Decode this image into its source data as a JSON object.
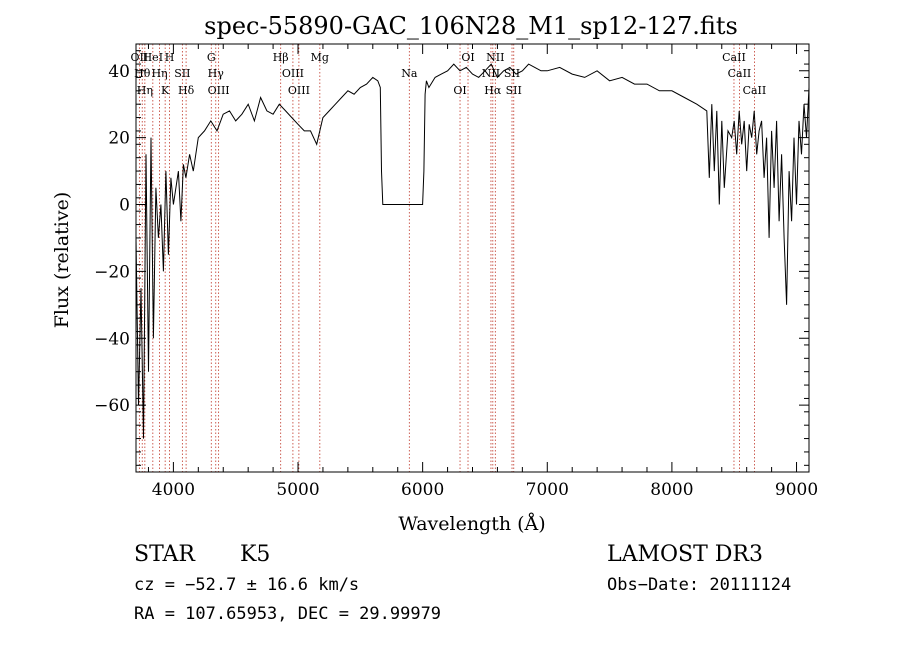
{
  "chart_data": {
    "type": "line",
    "title": "spec-55890-GAC_106N28_M1_sp12-127.fits",
    "xlabel": "Wavelength (Å)",
    "ylabel": "Flux (relative)",
    "xlim": [
      3700,
      9100
    ],
    "ylim": [
      -80,
      48
    ],
    "xticks": [
      4000,
      5000,
      6000,
      7000,
      8000,
      9000
    ],
    "xtick_labels": [
      "4000",
      "5000",
      "6000",
      "7000",
      "8000",
      "9000"
    ],
    "yticks": [
      -60,
      -40,
      -20,
      0,
      20,
      40
    ],
    "ytick_labels": [
      "−60",
      "−40",
      "−20",
      "0",
      "20",
      "40"
    ],
    "series": [
      {
        "color": "#000000",
        "x": [
          3700,
          3720,
          3740,
          3760,
          3780,
          3800,
          3820,
          3840,
          3860,
          3880,
          3900,
          3920,
          3940,
          3960,
          3980,
          4000,
          4020,
          4040,
          4060,
          4080,
          4100,
          4130,
          4160,
          4200,
          4250,
          4300,
          4350,
          4400,
          4450,
          4500,
          4550,
          4600,
          4650,
          4700,
          4750,
          4800,
          4850,
          4900,
          4950,
          5000,
          5050,
          5100,
          5150,
          5200,
          5250,
          5300,
          5350,
          5400,
          5450,
          5500,
          5550,
          5600,
          5640,
          5660,
          5670,
          5680,
          5700,
          5800,
          5900,
          6000,
          6010,
          6020,
          6030,
          6050,
          6100,
          6150,
          6200,
          6250,
          6300,
          6350,
          6400,
          6450,
          6500,
          6550,
          6600,
          6650,
          6700,
          6750,
          6800,
          6850,
          6900,
          6950,
          7000,
          7100,
          7200,
          7300,
          7400,
          7500,
          7600,
          7700,
          7800,
          7900,
          8000,
          8100,
          8200,
          8280,
          8300,
          8320,
          8340,
          8360,
          8380,
          8400,
          8420,
          8450,
          8480,
          8500,
          8520,
          8540,
          8560,
          8580,
          8600,
          8620,
          8640,
          8660,
          8680,
          8700,
          8720,
          8740,
          8760,
          8780,
          8800,
          8820,
          8840,
          8860,
          8880,
          8900,
          8920,
          8940,
          8960,
          8980,
          9000,
          9020,
          9040,
          9060,
          9080,
          9100
        ],
        "y": [
          -10,
          -60,
          -25,
          -70,
          15,
          -50,
          20,
          -40,
          5,
          -10,
          0,
          -20,
          10,
          -15,
          8,
          0,
          5,
          10,
          -5,
          12,
          8,
          15,
          10,
          20,
          22,
          25,
          22,
          27,
          28,
          25,
          27,
          30,
          25,
          32,
          28,
          27,
          30,
          28,
          26,
          24,
          22,
          22,
          18,
          26,
          28,
          30,
          32,
          34,
          33,
          35,
          36,
          38,
          37,
          35,
          10,
          0,
          0,
          0,
          0,
          0,
          10,
          33,
          37,
          35,
          38,
          39,
          40,
          42,
          40,
          41,
          39,
          38,
          40,
          42,
          38,
          40,
          41,
          39,
          40,
          42,
          41,
          40,
          40,
          41,
          39,
          38,
          40,
          37,
          38,
          36,
          36,
          34,
          34,
          32,
          30,
          28,
          8,
          30,
          10,
          28,
          0,
          25,
          5,
          22,
          20,
          25,
          15,
          28,
          18,
          25,
          10,
          24,
          20,
          28,
          15,
          22,
          25,
          8,
          20,
          -10,
          22,
          5,
          25,
          -5,
          15,
          -10,
          -30,
          10,
          -5,
          20,
          0,
          25,
          15,
          30,
          20,
          35
        ]
      }
    ],
    "line_markers": [
      {
        "x": 3727,
        "label": "OII"
      },
      {
        "x": 3750,
        "label": "Hθ"
      },
      {
        "x": 3771,
        "label": "Hη"
      },
      {
        "x": 3835,
        "label": "HeI"
      },
      {
        "x": 3889,
        "label": "Hη"
      },
      {
        "x": 3934,
        "label": "K"
      },
      {
        "x": 3969,
        "label": "H"
      },
      {
        "x": 4072,
        "label": "SII"
      },
      {
        "x": 4102,
        "label": "Hδ"
      },
      {
        "x": 4304,
        "label": "G"
      },
      {
        "x": 4340,
        "label": "Hγ"
      },
      {
        "x": 4363,
        "label": "OIII"
      },
      {
        "x": 4861,
        "label": "Hβ"
      },
      {
        "x": 4959,
        "label": "OIII"
      },
      {
        "x": 5007,
        "label": "OIII"
      },
      {
        "x": 5175,
        "label": "Mg"
      },
      {
        "x": 5893,
        "label": "Na"
      },
      {
        "x": 6300,
        "label": "OI"
      },
      {
        "x": 6364,
        "label": "OI"
      },
      {
        "x": 6548,
        "label": "NII"
      },
      {
        "x": 6563,
        "label": "Hα"
      },
      {
        "x": 6583,
        "label": "NII"
      },
      {
        "x": 6717,
        "label": "SII"
      },
      {
        "x": 6731,
        "label": "SII"
      },
      {
        "x": 8498,
        "label": "CaII"
      },
      {
        "x": 8542,
        "label": "CaII"
      },
      {
        "x": 8662,
        "label": "CaII"
      }
    ],
    "grid": false
  },
  "info": {
    "class": "STAR",
    "subclass": "K5",
    "survey": "LAMOST DR3",
    "cz": "cz = −52.7 ± 16.6 km/s",
    "obs_date": "Obs−Date: 20111124",
    "coords": "RA = 107.65953, DEC =  29.99979"
  }
}
